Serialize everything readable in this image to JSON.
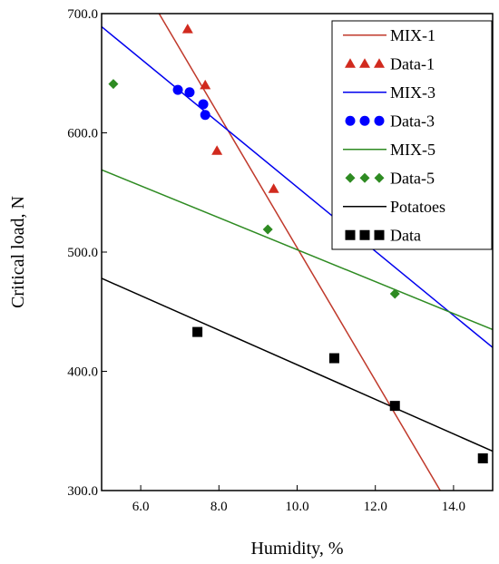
{
  "chart_data": {
    "type": "scatter",
    "xlabel": "Humidity, %",
    "ylabel": "Critical load, N",
    "xlim": [
      5.0,
      15.0
    ],
    "ylim": [
      300.0,
      700.0
    ],
    "xticks": [
      6.0,
      8.0,
      10.0,
      12.0,
      14.0
    ],
    "xtick_labels": [
      "6.0",
      "8.0",
      "10.0",
      "12.0",
      "14.0"
    ],
    "yticks": [
      300.0,
      400.0,
      500.0,
      600.0,
      700.0
    ],
    "ytick_labels": [
      "300.0",
      "400.0",
      "500.0",
      "600.0",
      "700.0"
    ],
    "grid": false,
    "legend_position": "top-right",
    "series": [
      {
        "name": "MIX-1",
        "kind": "line",
        "color": "#c0392b",
        "x": [
          6.47,
          13.66
        ],
        "y": [
          700.0,
          300.0
        ]
      },
      {
        "name": "Data-1",
        "kind": "points",
        "marker": "triangle",
        "color": "#d12a1e",
        "x": [
          7.2,
          7.65,
          7.95,
          9.4
        ],
        "y": [
          687,
          640,
          585,
          553
        ]
      },
      {
        "name": "MIX-3",
        "kind": "line",
        "color": "#0000ee",
        "x": [
          5.0,
          15.0
        ],
        "y": [
          689,
          420
        ]
      },
      {
        "name": "Data-3",
        "kind": "points",
        "marker": "circle",
        "color": "#0000ff",
        "x": [
          6.95,
          7.25,
          7.6,
          7.65
        ],
        "y": [
          636,
          634,
          624,
          615
        ]
      },
      {
        "name": "MIX-5",
        "kind": "line",
        "color": "#2e8b22",
        "x": [
          5.0,
          15.0
        ],
        "y": [
          569,
          435
        ]
      },
      {
        "name": "Data-5",
        "kind": "points",
        "marker": "diamond",
        "color": "#2e8b22",
        "x": [
          5.3,
          9.25,
          12.5
        ],
        "y": [
          641,
          519,
          465
        ]
      },
      {
        "name": "Potatoes",
        "kind": "line",
        "color": "#000000",
        "x": [
          5.0,
          15.0
        ],
        "y": [
          478,
          333
        ]
      },
      {
        "name": "Data",
        "kind": "points",
        "marker": "square",
        "color": "#000000",
        "x": [
          7.45,
          10.95,
          12.5,
          14.75
        ],
        "y": [
          433,
          411,
          371,
          327
        ]
      }
    ]
  }
}
